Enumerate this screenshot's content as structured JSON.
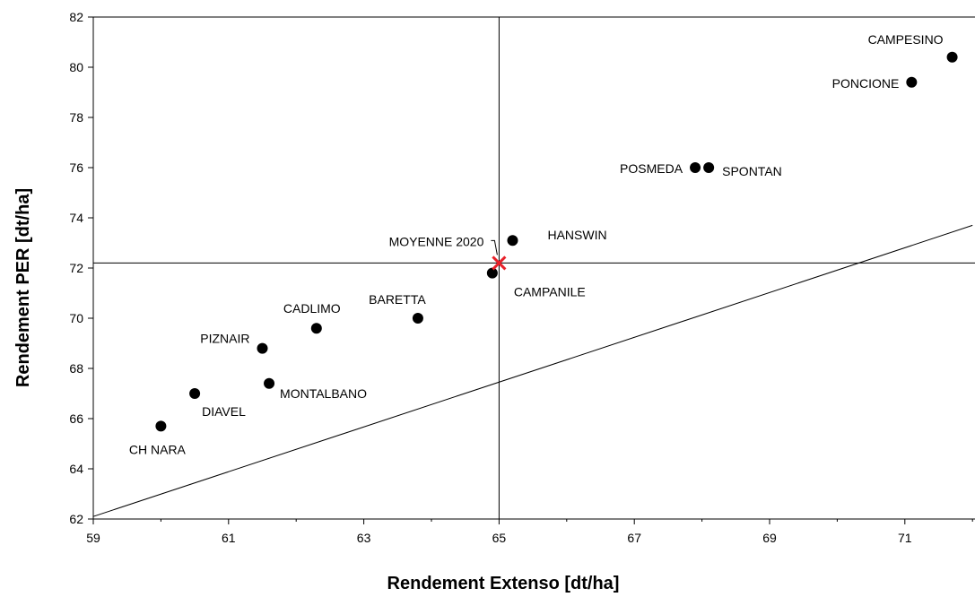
{
  "chart_data": {
    "type": "scatter",
    "title": "",
    "xlabel": "Rendement Extenso [dt/ha]",
    "ylabel": "Rendement PER [dt/ha]",
    "xlim": [
      59,
      72
    ],
    "ylim": [
      62,
      82
    ],
    "x_ticks": [
      59,
      61,
      63,
      65,
      67,
      69,
      71
    ],
    "y_ticks": [
      62,
      64,
      66,
      68,
      70,
      72,
      74,
      76,
      78,
      80,
      82
    ],
    "grid": false,
    "legend": "none",
    "points": [
      {
        "label": "CAMPESINO",
        "x": 71.7,
        "y": 80.4
      },
      {
        "label": "PONCIONE",
        "x": 71.1,
        "y": 79.4
      },
      {
        "label": "POSMEDA",
        "x": 67.9,
        "y": 76.0
      },
      {
        "label": "SPONTAN",
        "x": 68.1,
        "y": 76.0
      },
      {
        "label": "HANSWIN",
        "x": 65.2,
        "y": 73.1
      },
      {
        "label": "CAMPANILE",
        "x": 64.9,
        "y": 71.8
      },
      {
        "label": "BARETTA",
        "x": 63.8,
        "y": 70.0
      },
      {
        "label": "CADLIMO",
        "x": 62.3,
        "y": 69.6
      },
      {
        "label": "PIZNAIR",
        "x": 61.5,
        "y": 68.8
      },
      {
        "label": "MONTALBANO",
        "x": 61.6,
        "y": 67.4
      },
      {
        "label": "DIAVEL",
        "x": 60.5,
        "y": 67.0
      },
      {
        "label": "CH NARA",
        "x": 60.0,
        "y": 65.7
      }
    ],
    "mean": {
      "label": "MOYENNE 2020",
      "x": 65.0,
      "y": 72.2,
      "color": "#e8212a"
    },
    "reference_lines": {
      "vertical_x": 65.0,
      "horizontal_y": 72.2,
      "diagonal": {
        "x_start": 59,
        "y_start": 62.1,
        "x_end": 72,
        "y_end": 73.7
      }
    }
  }
}
